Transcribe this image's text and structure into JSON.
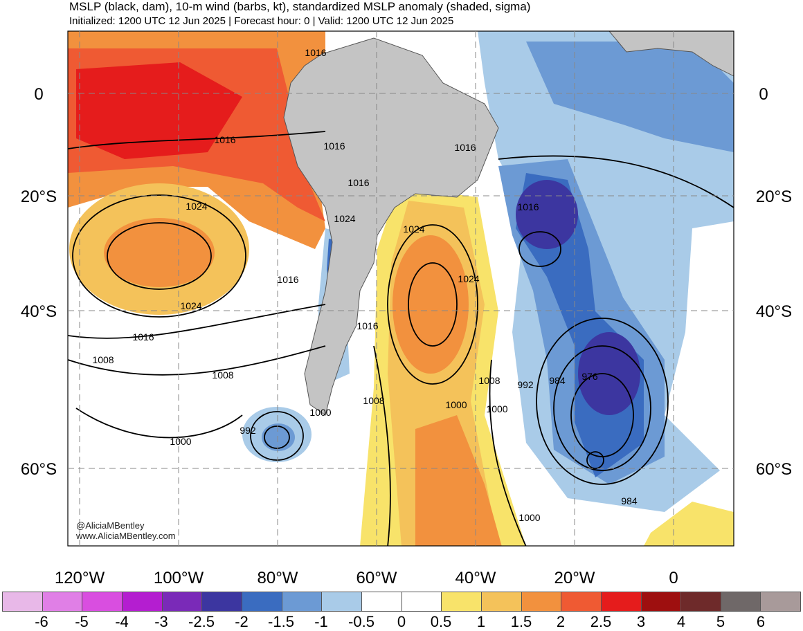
{
  "header": {
    "title": "MSLP (black, dam), 10-m wind (barbs, kt), standardized MSLP anomaly (shaded, sigma)",
    "subtitle": "Initialized: 1200 UTC 12 Jun 2025 | Forecast hour: 0 | Valid: 1200 UTC 12 Jun 2025"
  },
  "axes": {
    "lat_labels": [
      "0",
      "20°S",
      "40°S",
      "60°S"
    ],
    "lon_labels": [
      "120°W",
      "100°W",
      "80°W",
      "60°W",
      "40°W",
      "20°W",
      "0"
    ]
  },
  "contour_labels": [
    "1016",
    "1016",
    "1016",
    "1016",
    "1016",
    "1024",
    "1024",
    "1024",
    "1024",
    "1016",
    "1024",
    "1016",
    "1016",
    "1016",
    "1008",
    "1008",
    "1008",
    "1008",
    "992",
    "984",
    "976",
    "1000",
    "992",
    "1000",
    "1000",
    "1000",
    "984",
    "1000"
  ],
  "credits": [
    "@AliciaMBentley",
    "www.AliciaMBentley.com"
  ],
  "colorbar": {
    "ticks": [
      "-6",
      "-5",
      "-4",
      "-3",
      "-2.5",
      "-2",
      "-1.5",
      "-1",
      "-0.5",
      "0",
      "0.5",
      "1",
      "1.5",
      "2",
      "2.5",
      "3",
      "4",
      "5",
      "6"
    ],
    "colors": [
      "#e8b8e8",
      "#e07fe6",
      "#d94ee0",
      "#b41ed0",
      "#7a2ab8",
      "#3c36a0",
      "#3a6cc0",
      "#6c9ad4",
      "#a9cbe8",
      "#ffffff",
      "#ffffff",
      "#f8e36a",
      "#f4c25a",
      "#f2913e",
      "#ef5a33",
      "#e51c1c",
      "#9e0f0f",
      "#6e2a2a",
      "#6f6868",
      "#a89a9a"
    ]
  },
  "colors": {
    "land": "#c4c4c4",
    "gridline": "#888888"
  }
}
